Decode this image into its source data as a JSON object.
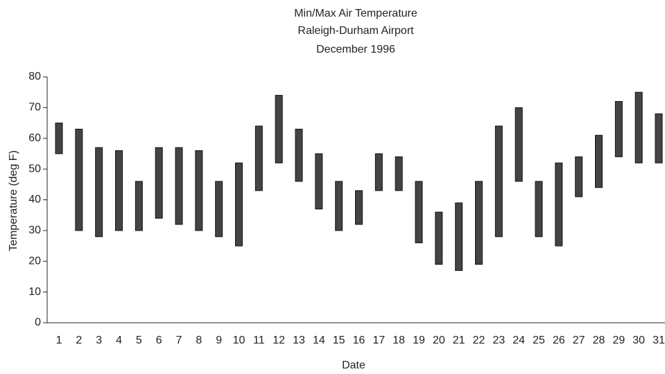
{
  "chart_data": {
    "type": "range_bar",
    "title": [
      "Min/Max Air Temperature",
      "Raleigh-Durham Airport",
      "December 1996"
    ],
    "x_label": "Date",
    "y_label": "Temperature (deg F)",
    "categories": [
      "1",
      "2",
      "3",
      "4",
      "5",
      "6",
      "7",
      "8",
      "9",
      "10",
      "11",
      "12",
      "13",
      "14",
      "15",
      "16",
      "17",
      "18",
      "19",
      "20",
      "21",
      "22",
      "23",
      "24",
      "25",
      "26",
      "27",
      "28",
      "29",
      "30",
      "31"
    ],
    "low": [
      55,
      30,
      28,
      30,
      30,
      34,
      32,
      30,
      28,
      25,
      43,
      52,
      46,
      37,
      30,
      32,
      43,
      43,
      26,
      19,
      17,
      19,
      28,
      46,
      28,
      25,
      41,
      44,
      54,
      52,
      52
    ],
    "high": [
      65,
      63,
      57,
      56,
      46,
      57,
      57,
      56,
      46,
      52,
      64,
      74,
      63,
      55,
      46,
      43,
      55,
      54,
      46,
      36,
      39,
      46,
      64,
      70,
      46,
      52,
      54,
      61,
      72,
      75,
      68
    ],
    "color": "#444444",
    "ylim": [
      0,
      80
    ],
    "yticks": [
      0,
      10,
      20,
      30,
      40,
      50,
      60,
      70,
      80
    ]
  }
}
